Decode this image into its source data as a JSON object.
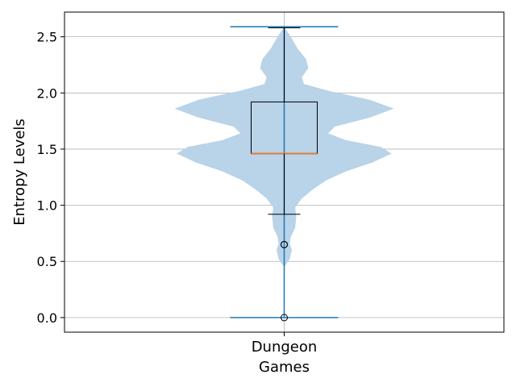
{
  "chart_data": {
    "type": "violin",
    "title": "",
    "xlabel": "Games",
    "ylabel": "Entropy Levels",
    "categories": [
      "Dungeon"
    ],
    "ylim": [
      -0.13,
      2.72
    ],
    "yticks": [
      0.0,
      0.5,
      1.0,
      1.5,
      2.0,
      2.5
    ],
    "ytick_labels": [
      "0.0",
      "0.5",
      "1.0",
      "1.5",
      "2.0",
      "2.5"
    ],
    "grid": true,
    "violin": {
      "min": 0.0,
      "max": 2.59,
      "density_profile": [
        {
          "y": 0.45,
          "w": 0.0
        },
        {
          "y": 0.52,
          "w": 0.05
        },
        {
          "y": 0.6,
          "w": 0.07
        },
        {
          "y": 0.66,
          "w": 0.05
        },
        {
          "y": 0.72,
          "w": 0.06
        },
        {
          "y": 0.8,
          "w": 0.1
        },
        {
          "y": 0.9,
          "w": 0.11
        },
        {
          "y": 0.98,
          "w": 0.1
        },
        {
          "y": 1.06,
          "w": 0.16
        },
        {
          "y": 1.14,
          "w": 0.26
        },
        {
          "y": 1.22,
          "w": 0.38
        },
        {
          "y": 1.3,
          "w": 0.56
        },
        {
          "y": 1.38,
          "w": 0.8
        },
        {
          "y": 1.46,
          "w": 0.98
        },
        {
          "y": 1.52,
          "w": 0.88
        },
        {
          "y": 1.58,
          "w": 0.56
        },
        {
          "y": 1.64,
          "w": 0.4
        },
        {
          "y": 1.7,
          "w": 0.46
        },
        {
          "y": 1.78,
          "w": 0.78
        },
        {
          "y": 1.86,
          "w": 1.0
        },
        {
          "y": 1.94,
          "w": 0.78
        },
        {
          "y": 2.02,
          "w": 0.4
        },
        {
          "y": 2.08,
          "w": 0.18
        },
        {
          "y": 2.14,
          "w": 0.16
        },
        {
          "y": 2.22,
          "w": 0.22
        },
        {
          "y": 2.3,
          "w": 0.2
        },
        {
          "y": 2.4,
          "w": 0.12
        },
        {
          "y": 2.5,
          "w": 0.06
        },
        {
          "y": 2.59,
          "w": 0.0
        }
      ]
    },
    "boxplot": {
      "q1": 1.46,
      "median": 1.46,
      "q3": 1.92,
      "whisker_low": 0.92,
      "whisker_high": 2.58,
      "outliers": [
        0.65,
        0.65,
        0.0
      ]
    },
    "colors": {
      "violin_fill": "#b9d3e8",
      "violin_lines": "#1f77b4",
      "median": "#e07b39",
      "box": "#000000",
      "grid": "#b0b0b0"
    }
  }
}
